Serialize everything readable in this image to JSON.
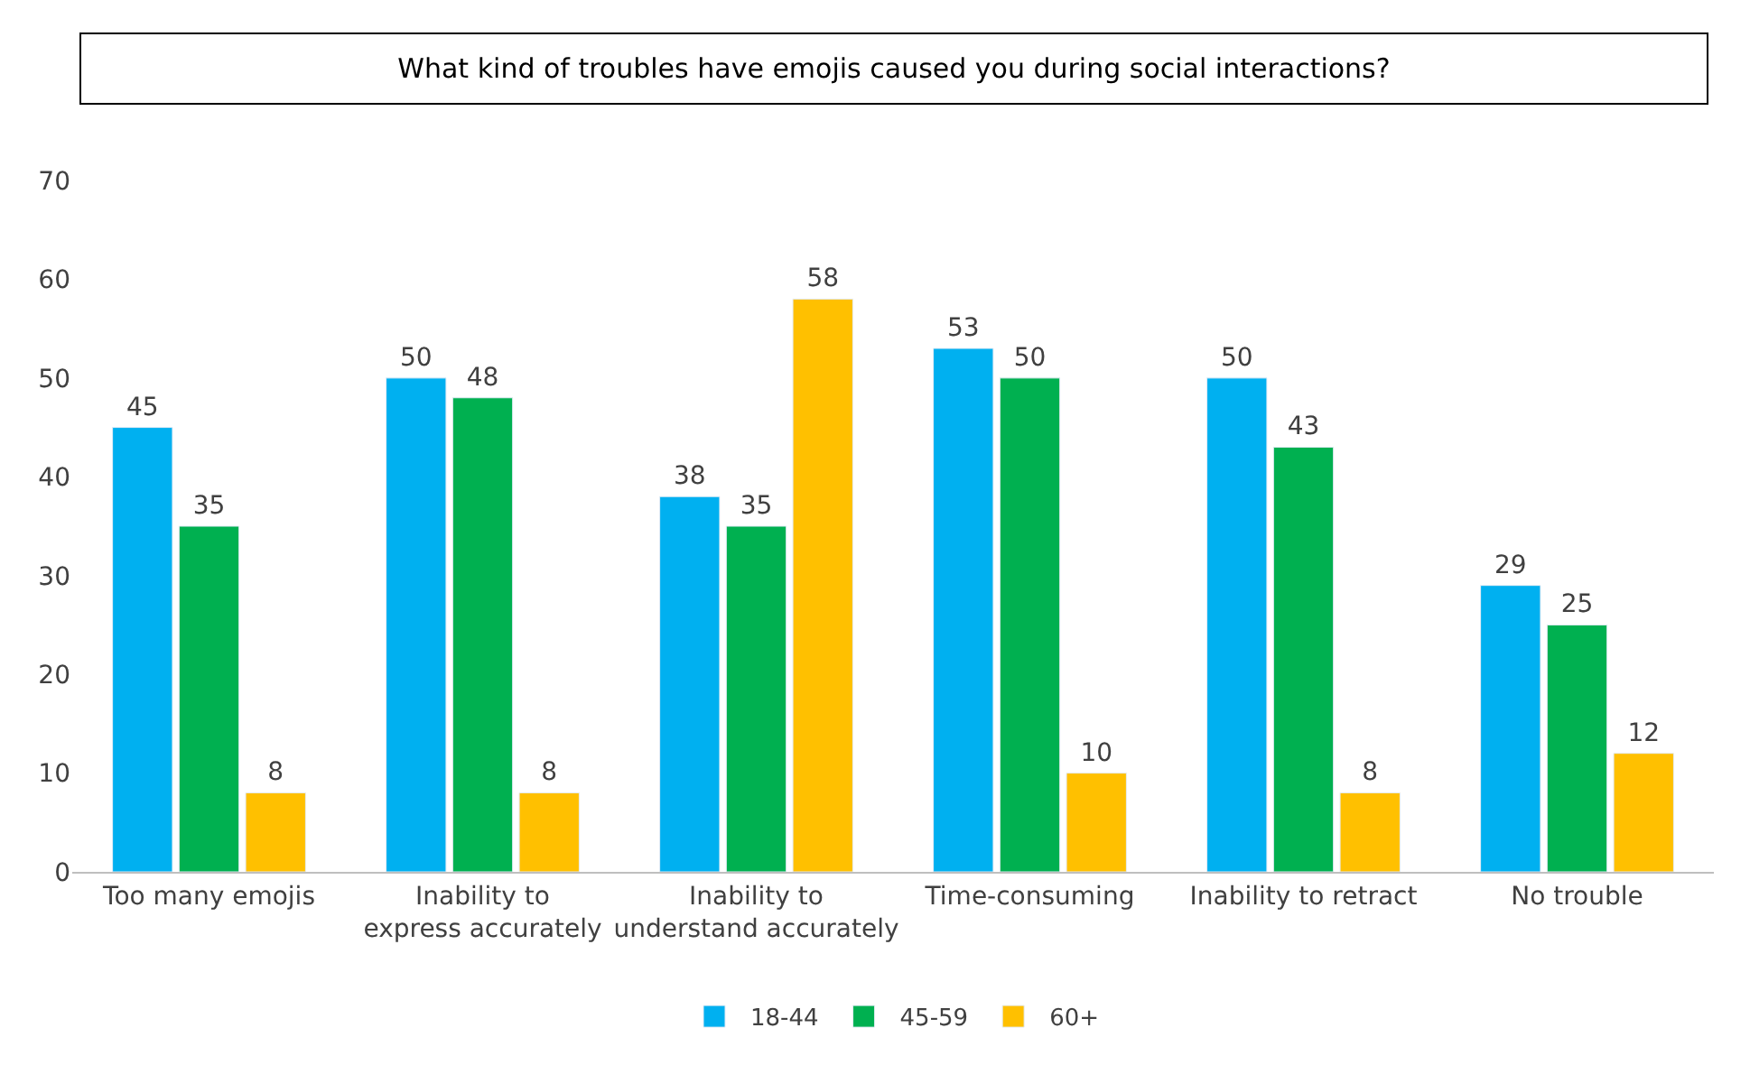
{
  "chart_data": {
    "type": "bar",
    "title": "What kind of troubles have emojis caused you during social interactions?",
    "categories": [
      "Too many emojis",
      "Inability to\nexpress accurately",
      "Inability to\nunderstand accurately",
      "Time-consuming",
      "Inability to retract",
      "No trouble"
    ],
    "series": [
      {
        "name": "18-44",
        "color": "#00b0f0",
        "values": [
          45,
          50,
          38,
          53,
          50,
          29
        ]
      },
      {
        "name": "45-59",
        "color": "#00b050",
        "values": [
          35,
          48,
          35,
          50,
          43,
          25
        ]
      },
      {
        "name": "60+",
        "color": "#ffc000",
        "values": [
          8,
          8,
          58,
          10,
          8,
          12
        ]
      }
    ],
    "ylim": [
      0,
      70
    ],
    "yticks": [
      0,
      10,
      20,
      30,
      40,
      50,
      60,
      70
    ],
    "grid": false,
    "legend": "bottom",
    "data_labels": true
  }
}
